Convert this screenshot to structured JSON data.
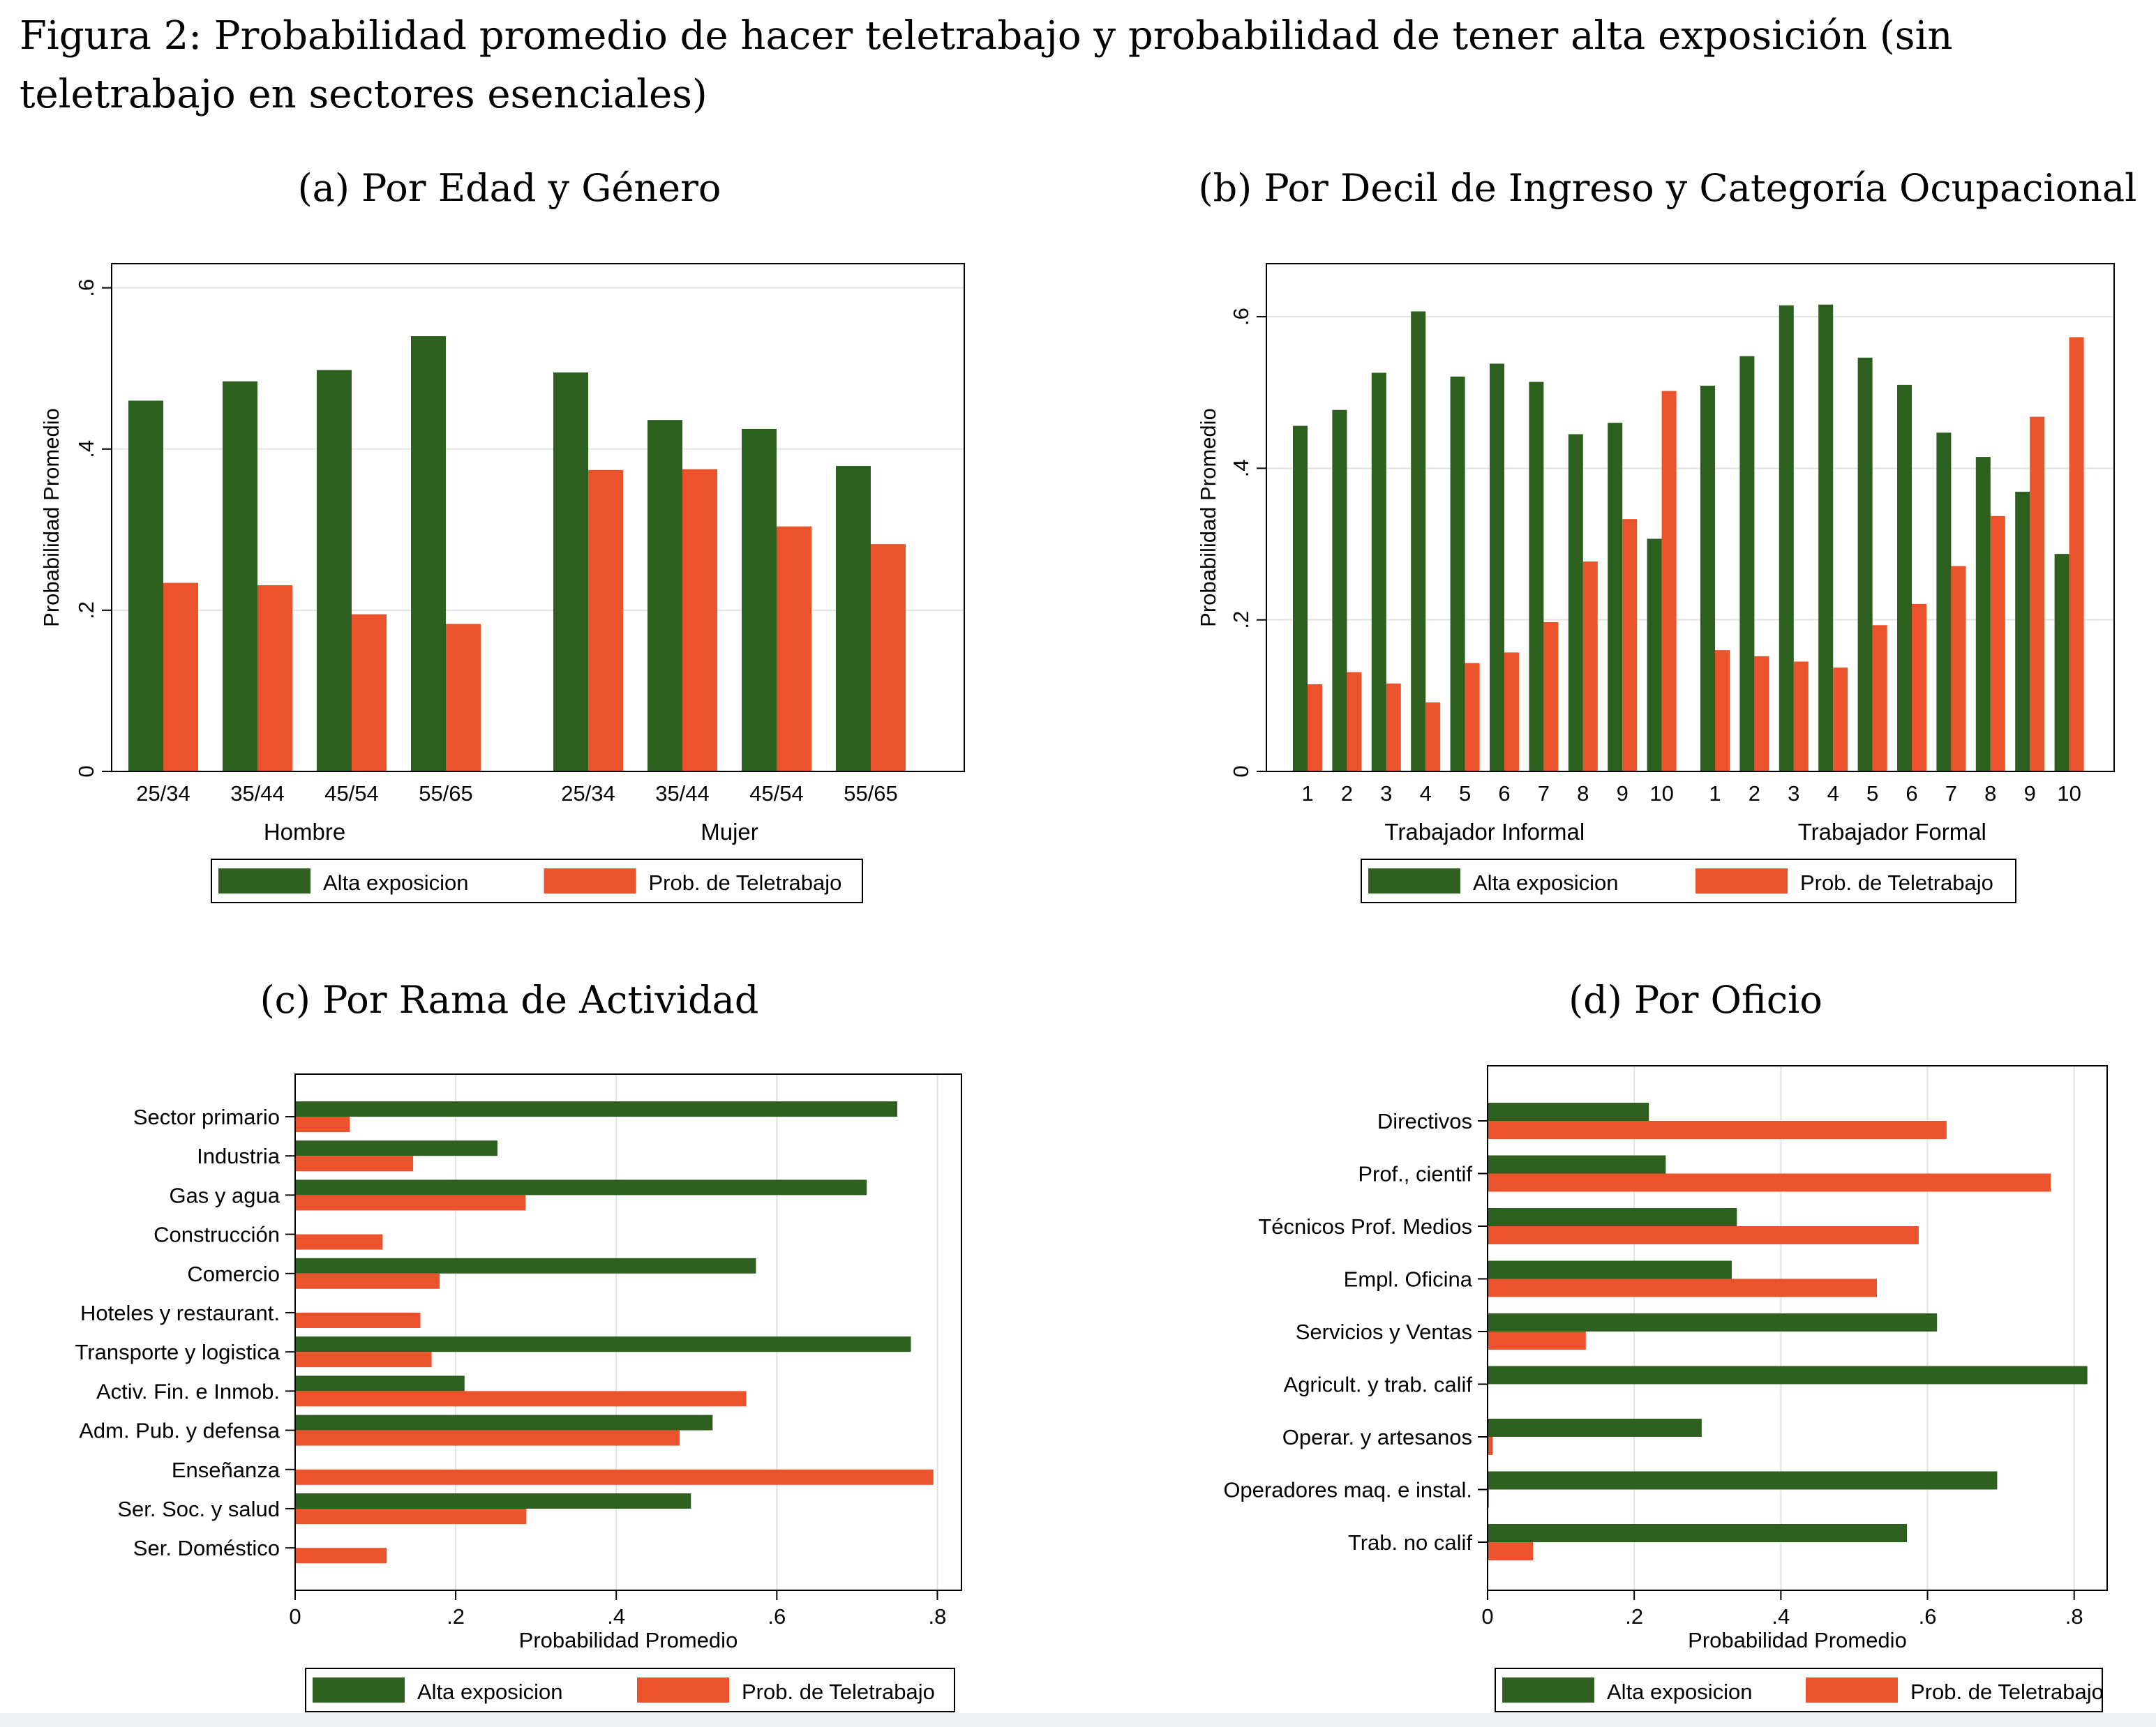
{
  "figure_title": "Figura 2: Probabilidad promedio de hacer teletrabajo y probabilidad de tener alta exposición (sin teletrabajo en sectores esenciales)",
  "colors": {
    "alta": "#2d5f1f",
    "tele": "#ea532b",
    "grid": "#e2e2e2",
    "frame": "#000000"
  },
  "legend": [
    "Alta exposicion",
    "Prob. de Teletrabajo"
  ],
  "chart_data": [
    {
      "id": "a",
      "type": "bar",
      "orientation": "vertical",
      "title": "(a) Por Edad y Género",
      "ylabel": "Probabilidad Promedio",
      "ylim": [
        0,
        0.63
      ],
      "yticks": [
        0,
        0.2,
        0.4,
        0.6
      ],
      "ytick_labels": [
        "0",
        ".2",
        ".4",
        ".6"
      ],
      "groups": [
        {
          "name": "Hombre",
          "categories": [
            "25/34",
            "35/44",
            "45/54",
            "55/65"
          ]
        },
        {
          "name": "Mujer",
          "categories": [
            "25/34",
            "35/44",
            "45/54",
            "55/65"
          ]
        }
      ],
      "series": [
        {
          "name": "Alta exposicion",
          "values": [
            0.46,
            0.484,
            0.498,
            0.54,
            0.495,
            0.436,
            0.425,
            0.379
          ]
        },
        {
          "name": "Prob. de Teletrabajo",
          "values": [
            0.234,
            0.231,
            0.195,
            0.183,
            0.374,
            0.375,
            0.304,
            0.282
          ]
        }
      ],
      "legend_position": "bottom"
    },
    {
      "id": "b",
      "type": "bar",
      "orientation": "vertical",
      "title": "(b) Por Decil de Ingreso y Categoría Ocupacional",
      "ylabel": "Probabilidad Promedio",
      "ylim": [
        0,
        0.67
      ],
      "yticks": [
        0,
        0.2,
        0.4,
        0.6
      ],
      "ytick_labels": [
        "0",
        ".2",
        ".4",
        ".6"
      ],
      "groups": [
        {
          "name": "Trabajador Informal",
          "categories": [
            "1",
            "2",
            "3",
            "4",
            "5",
            "6",
            "7",
            "8",
            "9",
            "10"
          ]
        },
        {
          "name": "Trabajador Formal",
          "categories": [
            "1",
            "2",
            "3",
            "4",
            "5",
            "6",
            "7",
            "8",
            "9",
            "10"
          ]
        }
      ],
      "series": [
        {
          "name": "Alta exposicion",
          "values": [
            0.456,
            0.477,
            0.526,
            0.607,
            0.521,
            0.538,
            0.514,
            0.445,
            0.46,
            0.307,
            0.509,
            0.548,
            0.615,
            0.616,
            0.546,
            0.51,
            0.447,
            0.415,
            0.369,
            0.287
          ]
        },
        {
          "name": "Prob. de Teletrabajo",
          "values": [
            0.115,
            0.131,
            0.116,
            0.091,
            0.143,
            0.157,
            0.197,
            0.277,
            0.333,
            0.502,
            0.16,
            0.152,
            0.145,
            0.137,
            0.193,
            0.221,
            0.271,
            0.337,
            0.468,
            0.573
          ]
        }
      ],
      "legend_position": "bottom"
    },
    {
      "id": "c",
      "type": "bar",
      "orientation": "horizontal",
      "title": "(c) Por Rama de Actividad",
      "xlabel": "Probabilidad Promedio",
      "xlim": [
        0,
        0.83
      ],
      "xticks": [
        0,
        0.2,
        0.4,
        0.6,
        0.8
      ],
      "xtick_labels": [
        "0",
        ".2",
        ".4",
        ".6",
        ".8"
      ],
      "categories": [
        "Sector primario",
        "Industria",
        "Gas y agua",
        "Construcción",
        "Comercio",
        "Hoteles y restaurant.",
        "Transporte y logistica",
        "Activ. Fin. e Inmob.",
        "Adm. Pub. y defensa",
        "Enseñanza",
        "Ser. Soc. y salud",
        "Ser. Doméstico"
      ],
      "series": [
        {
          "name": "Alta exposicion",
          "values": [
            0.75,
            0.252,
            0.712,
            0,
            0.574,
            0,
            0.767,
            0.211,
            0.52,
            0,
            0.493,
            0
          ]
        },
        {
          "name": "Prob. de Teletrabajo",
          "values": [
            0.068,
            0.147,
            0.287,
            0.109,
            0.18,
            0.156,
            0.17,
            0.562,
            0.479,
            0.795,
            0.288,
            0.114
          ]
        }
      ],
      "legend_position": "bottom"
    },
    {
      "id": "d",
      "type": "bar",
      "orientation": "horizontal",
      "title": "(d) Por Oficio",
      "xlabel": "Probabilidad Promedio",
      "xlim": [
        0,
        0.845
      ],
      "xticks": [
        0,
        0.2,
        0.4,
        0.6,
        0.8
      ],
      "xtick_labels": [
        "0",
        ".2",
        ".4",
        ".6",
        ".8"
      ],
      "categories": [
        "Directivos",
        "Prof., cientif",
        "Técnicos Prof. Medios",
        "Empl. Oficina",
        "Servicios y Ventas",
        "Agricult. y trab. calif",
        "Operar. y artesanos",
        "Operadores maq. e instal.",
        "Trab. no calif"
      ],
      "series": [
        {
          "name": "Alta exposicion",
          "values": [
            0.22,
            0.243,
            0.34,
            0.333,
            0.613,
            0.818,
            0.292,
            0.695,
            0.572
          ]
        },
        {
          "name": "Prob. de Teletrabajo",
          "values": [
            0.626,
            0.768,
            0.588,
            0.531,
            0.134,
            0,
            0.007,
            0.002,
            0.062
          ]
        }
      ],
      "legend_position": "bottom"
    }
  ]
}
